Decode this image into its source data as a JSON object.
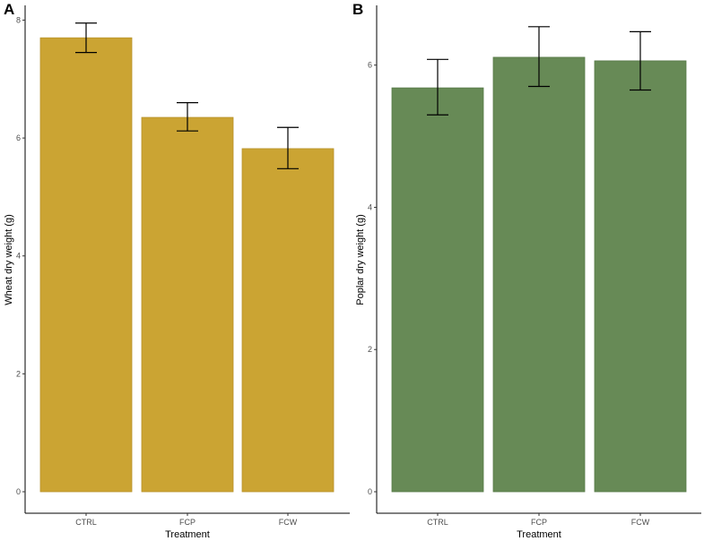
{
  "chart_data": [
    {
      "panel": "A",
      "type": "bar",
      "categories": [
        "CTRL",
        "FCP",
        "FCW"
      ],
      "values": [
        7.7,
        6.35,
        5.82
      ],
      "error_low": [
        7.45,
        6.12,
        5.48
      ],
      "error_high": [
        7.95,
        6.6,
        6.18
      ],
      "ylim": [
        0,
        8.25
      ],
      "yticks": [
        0,
        2,
        4,
        6,
        8
      ],
      "xlabel": "Treatment",
      "ylabel": "Wheat dry weight (g)",
      "bar_color": "#CBA433",
      "bar_stroke": "#B8922A"
    },
    {
      "panel": "B",
      "type": "bar",
      "categories": [
        "CTRL",
        "FCP",
        "FCW"
      ],
      "values": [
        5.68,
        6.11,
        6.06
      ],
      "error_low": [
        5.3,
        5.7,
        5.65
      ],
      "error_high": [
        6.08,
        6.54,
        6.47
      ],
      "ylim": [
        0,
        6.84
      ],
      "yticks": [
        0,
        2,
        4,
        6
      ],
      "xlabel": "Treatment",
      "ylabel": "Poplar dry weight (g)",
      "bar_color": "#678A56",
      "bar_stroke": "#587A48"
    }
  ]
}
